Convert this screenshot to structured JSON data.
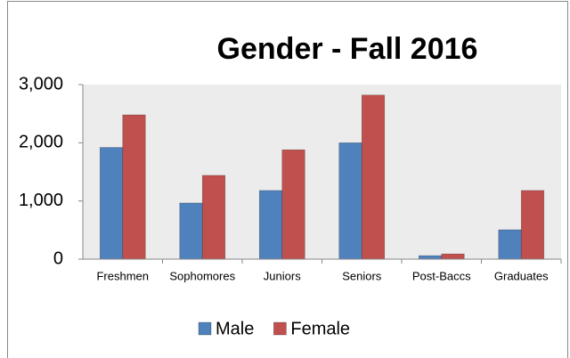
{
  "chart_data": {
    "type": "bar",
    "title": "Gender - Fall 2016",
    "categories": [
      "Freshmen",
      "Sophomores",
      "Juniors",
      "Seniors",
      "Post-Baccs",
      "Graduates"
    ],
    "series": [
      {
        "name": "Male",
        "color": "#4f81bd",
        "values": [
          1920,
          965,
          1180,
          2000,
          60,
          505
        ]
      },
      {
        "name": "Female",
        "color": "#c0504d",
        "values": [
          2480,
          1440,
          1880,
          2820,
          90,
          1180
        ]
      }
    ],
    "ylim": [
      0,
      3000
    ],
    "yticks": [
      0,
      {
        "value": 1000,
        "label": "1,000"
      },
      {
        "value": 2000,
        "label": "2,000"
      },
      {
        "value": 3000,
        "label": "3,000"
      }
    ],
    "legend": "bottom"
  }
}
